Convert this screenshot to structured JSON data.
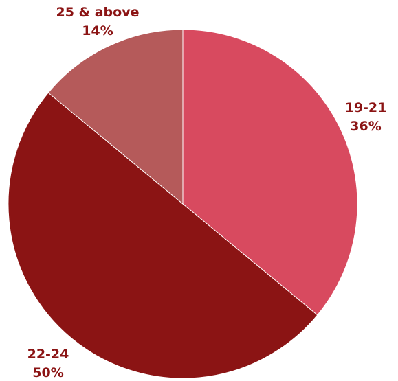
{
  "chart_data": {
    "type": "pie",
    "title": "",
    "start_angle_deg": 0,
    "direction": "clockwise",
    "slices": [
      {
        "label": "19-21",
        "percent_label": "36%",
        "value": 36,
        "color": "#d84a5f"
      },
      {
        "label": "22-24",
        "percent_label": "50%",
        "value": 50,
        "color": "#8b1414"
      },
      {
        "label": "25 & above",
        "percent_label": "14%",
        "value": 14,
        "color": "#b55a5a"
      }
    ]
  }
}
